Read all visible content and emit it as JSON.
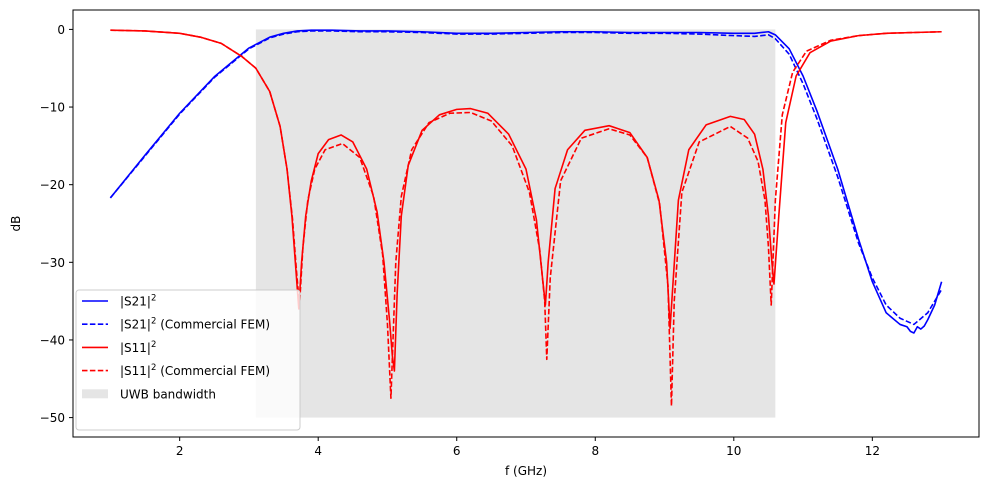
{
  "chart_data": {
    "type": "line",
    "title": "",
    "xlabel": "f (GHz)",
    "ylabel": "dB",
    "xlim": [
      0.46,
      13.54
    ],
    "ylim": [
      -52.5,
      2.5
    ],
    "xticks": [
      2,
      4,
      6,
      8,
      10,
      12
    ],
    "xtick_labels": [
      "2",
      "4",
      "6",
      "8",
      "10",
      "12"
    ],
    "yticks": [
      0,
      -10,
      -20,
      -30,
      -40,
      -50
    ],
    "ytick_labels": [
      "0",
      "−10",
      "−20",
      "−30",
      "−40",
      "−50"
    ],
    "grid": false,
    "legend_position": "lower-left",
    "band": {
      "name": "UWB bandwidth",
      "x": [
        3.1,
        10.6
      ],
      "y": [
        -50,
        0
      ],
      "color": "#e5e5e5"
    },
    "series": [
      {
        "name": "|S21|",
        "name_sup": "2",
        "color": "#0000ff",
        "dash": "solid",
        "x": [
          1.0,
          1.5,
          2.0,
          2.5,
          3.0,
          3.3,
          3.5,
          3.7,
          3.9,
          4.2,
          4.6,
          5.0,
          5.5,
          6.0,
          6.5,
          7.0,
          7.5,
          8.0,
          8.5,
          9.0,
          9.5,
          10.0,
          10.3,
          10.5,
          10.6,
          10.8,
          11.0,
          11.2,
          11.5,
          11.8,
          12.0,
          12.2,
          12.4,
          12.5,
          12.55,
          12.6,
          12.65,
          12.7,
          12.75,
          12.8,
          12.9,
          13.0
        ],
        "y": [
          -21.7,
          -16.2,
          -10.8,
          -6.1,
          -2.4,
          -1.0,
          -0.5,
          -0.2,
          -0.1,
          -0.1,
          -0.2,
          -0.2,
          -0.3,
          -0.5,
          -0.5,
          -0.4,
          -0.3,
          -0.3,
          -0.4,
          -0.4,
          -0.4,
          -0.5,
          -0.5,
          -0.3,
          -0.7,
          -2.5,
          -6.0,
          -10.5,
          -18.0,
          -27.0,
          -32.5,
          -36.5,
          -38.0,
          -38.3,
          -38.9,
          -39.1,
          -38.3,
          -38.6,
          -38.2,
          -37.4,
          -35.5,
          -32.5
        ]
      },
      {
        "name": "|S21| (Commercial FEM)",
        "name_sup": "2",
        "color": "#0000ff",
        "dash": "dashed",
        "x": [
          1.0,
          1.5,
          2.0,
          2.5,
          3.0,
          3.3,
          3.5,
          3.7,
          3.9,
          4.2,
          4.6,
          5.0,
          5.5,
          6.0,
          6.5,
          7.0,
          7.5,
          8.0,
          8.5,
          9.0,
          9.5,
          10.0,
          10.3,
          10.5,
          10.6,
          10.8,
          11.0,
          11.2,
          11.5,
          11.8,
          12.0,
          12.2,
          12.4,
          12.6,
          12.8,
          13.0
        ],
        "y": [
          -21.7,
          -16.3,
          -10.9,
          -6.2,
          -2.5,
          -1.1,
          -0.6,
          -0.3,
          -0.2,
          -0.2,
          -0.3,
          -0.3,
          -0.4,
          -0.6,
          -0.6,
          -0.5,
          -0.4,
          -0.4,
          -0.5,
          -0.5,
          -0.6,
          -0.8,
          -0.9,
          -0.7,
          -1.2,
          -3.2,
          -7.0,
          -11.5,
          -19.0,
          -27.5,
          -32.0,
          -35.5,
          -37.2,
          -38.0,
          -36.5,
          -33.5
        ]
      },
      {
        "name": "|S11|",
        "name_sup": "2",
        "color": "#ff0000",
        "dash": "solid",
        "x": [
          1.0,
          1.5,
          2.0,
          2.3,
          2.6,
          2.9,
          3.1,
          3.3,
          3.45,
          3.55,
          3.62,
          3.67,
          3.72,
          3.76,
          3.82,
          3.9,
          4.0,
          4.15,
          4.33,
          4.5,
          4.7,
          4.85,
          4.95,
          5.03,
          5.07,
          5.1,
          5.14,
          5.2,
          5.3,
          5.5,
          5.75,
          6.0,
          6.2,
          6.45,
          6.75,
          7.0,
          7.15,
          7.25,
          7.28,
          7.32,
          7.42,
          7.6,
          7.85,
          8.2,
          8.5,
          8.75,
          8.92,
          9.03,
          9.08,
          9.12,
          9.2,
          9.35,
          9.6,
          9.95,
          10.15,
          10.3,
          10.42,
          10.5,
          10.55,
          10.58,
          10.65,
          10.75,
          10.9,
          11.1,
          11.4,
          11.8,
          12.2,
          12.6,
          13.0
        ],
        "y": [
          -0.1,
          -0.2,
          -0.5,
          -1.0,
          -1.8,
          -3.5,
          -5.0,
          -8.0,
          -12.5,
          -18.0,
          -24.0,
          -30.0,
          -36.0,
          -30.0,
          -24.0,
          -19.5,
          -16.0,
          -14.2,
          -13.6,
          -14.5,
          -18.0,
          -23.5,
          -30.0,
          -37.5,
          -42.0,
          -44.0,
          -34.0,
          -24.0,
          -17.5,
          -13.0,
          -11.0,
          -10.3,
          -10.2,
          -10.8,
          -13.5,
          -18.0,
          -24.5,
          -33.0,
          -35.5,
          -30.0,
          -20.5,
          -15.5,
          -13.0,
          -12.4,
          -13.3,
          -16.5,
          -22.0,
          -30.0,
          -38.5,
          -33.0,
          -22.0,
          -15.5,
          -12.3,
          -11.2,
          -11.6,
          -13.5,
          -18.0,
          -24.0,
          -30.0,
          -32.8,
          -24.0,
          -12.0,
          -6.0,
          -3.0,
          -1.5,
          -0.8,
          -0.5,
          -0.4,
          -0.3
        ]
      },
      {
        "name": "|S11| (Commercial FEM)",
        "name_sup": "2",
        "color": "#ff0000",
        "dash": "dashed",
        "x": [
          1.0,
          1.5,
          2.0,
          2.3,
          2.6,
          2.9,
          3.1,
          3.3,
          3.45,
          3.55,
          3.63,
          3.69,
          3.73,
          3.78,
          3.85,
          3.95,
          4.1,
          4.35,
          4.6,
          4.8,
          4.93,
          5.0,
          5.05,
          5.08,
          5.12,
          5.2,
          5.35,
          5.6,
          5.9,
          6.2,
          6.5,
          6.8,
          7.05,
          7.2,
          7.27,
          7.3,
          7.35,
          7.5,
          7.8,
          8.2,
          8.5,
          8.75,
          8.93,
          9.05,
          9.1,
          9.14,
          9.25,
          9.5,
          9.95,
          10.2,
          10.35,
          10.45,
          10.5,
          10.54,
          10.6,
          10.7,
          10.85,
          11.05,
          11.4,
          11.8,
          12.2,
          12.6,
          13.0
        ],
        "y": [
          -0.1,
          -0.2,
          -0.5,
          -1.0,
          -1.8,
          -3.5,
          -5.0,
          -8.0,
          -12.5,
          -18.0,
          -24.5,
          -31.5,
          -35.5,
          -28.0,
          -22.0,
          -18.0,
          -15.5,
          -14.7,
          -16.5,
          -21.5,
          -29.0,
          -38.0,
          -47.5,
          -40.0,
          -30.0,
          -21.5,
          -15.5,
          -12.0,
          -10.8,
          -10.7,
          -11.8,
          -15.0,
          -21.0,
          -28.5,
          -35.0,
          -42.5,
          -32.0,
          -19.5,
          -14.0,
          -12.8,
          -13.6,
          -16.5,
          -22.5,
          -33.0,
          -48.5,
          -35.0,
          -21.0,
          -14.5,
          -12.5,
          -14.0,
          -17.0,
          -22.0,
          -28.0,
          -35.5,
          -22.0,
          -11.0,
          -5.5,
          -2.8,
          -1.4,
          -0.8,
          -0.5,
          -0.4,
          -0.3
        ]
      }
    ]
  }
}
